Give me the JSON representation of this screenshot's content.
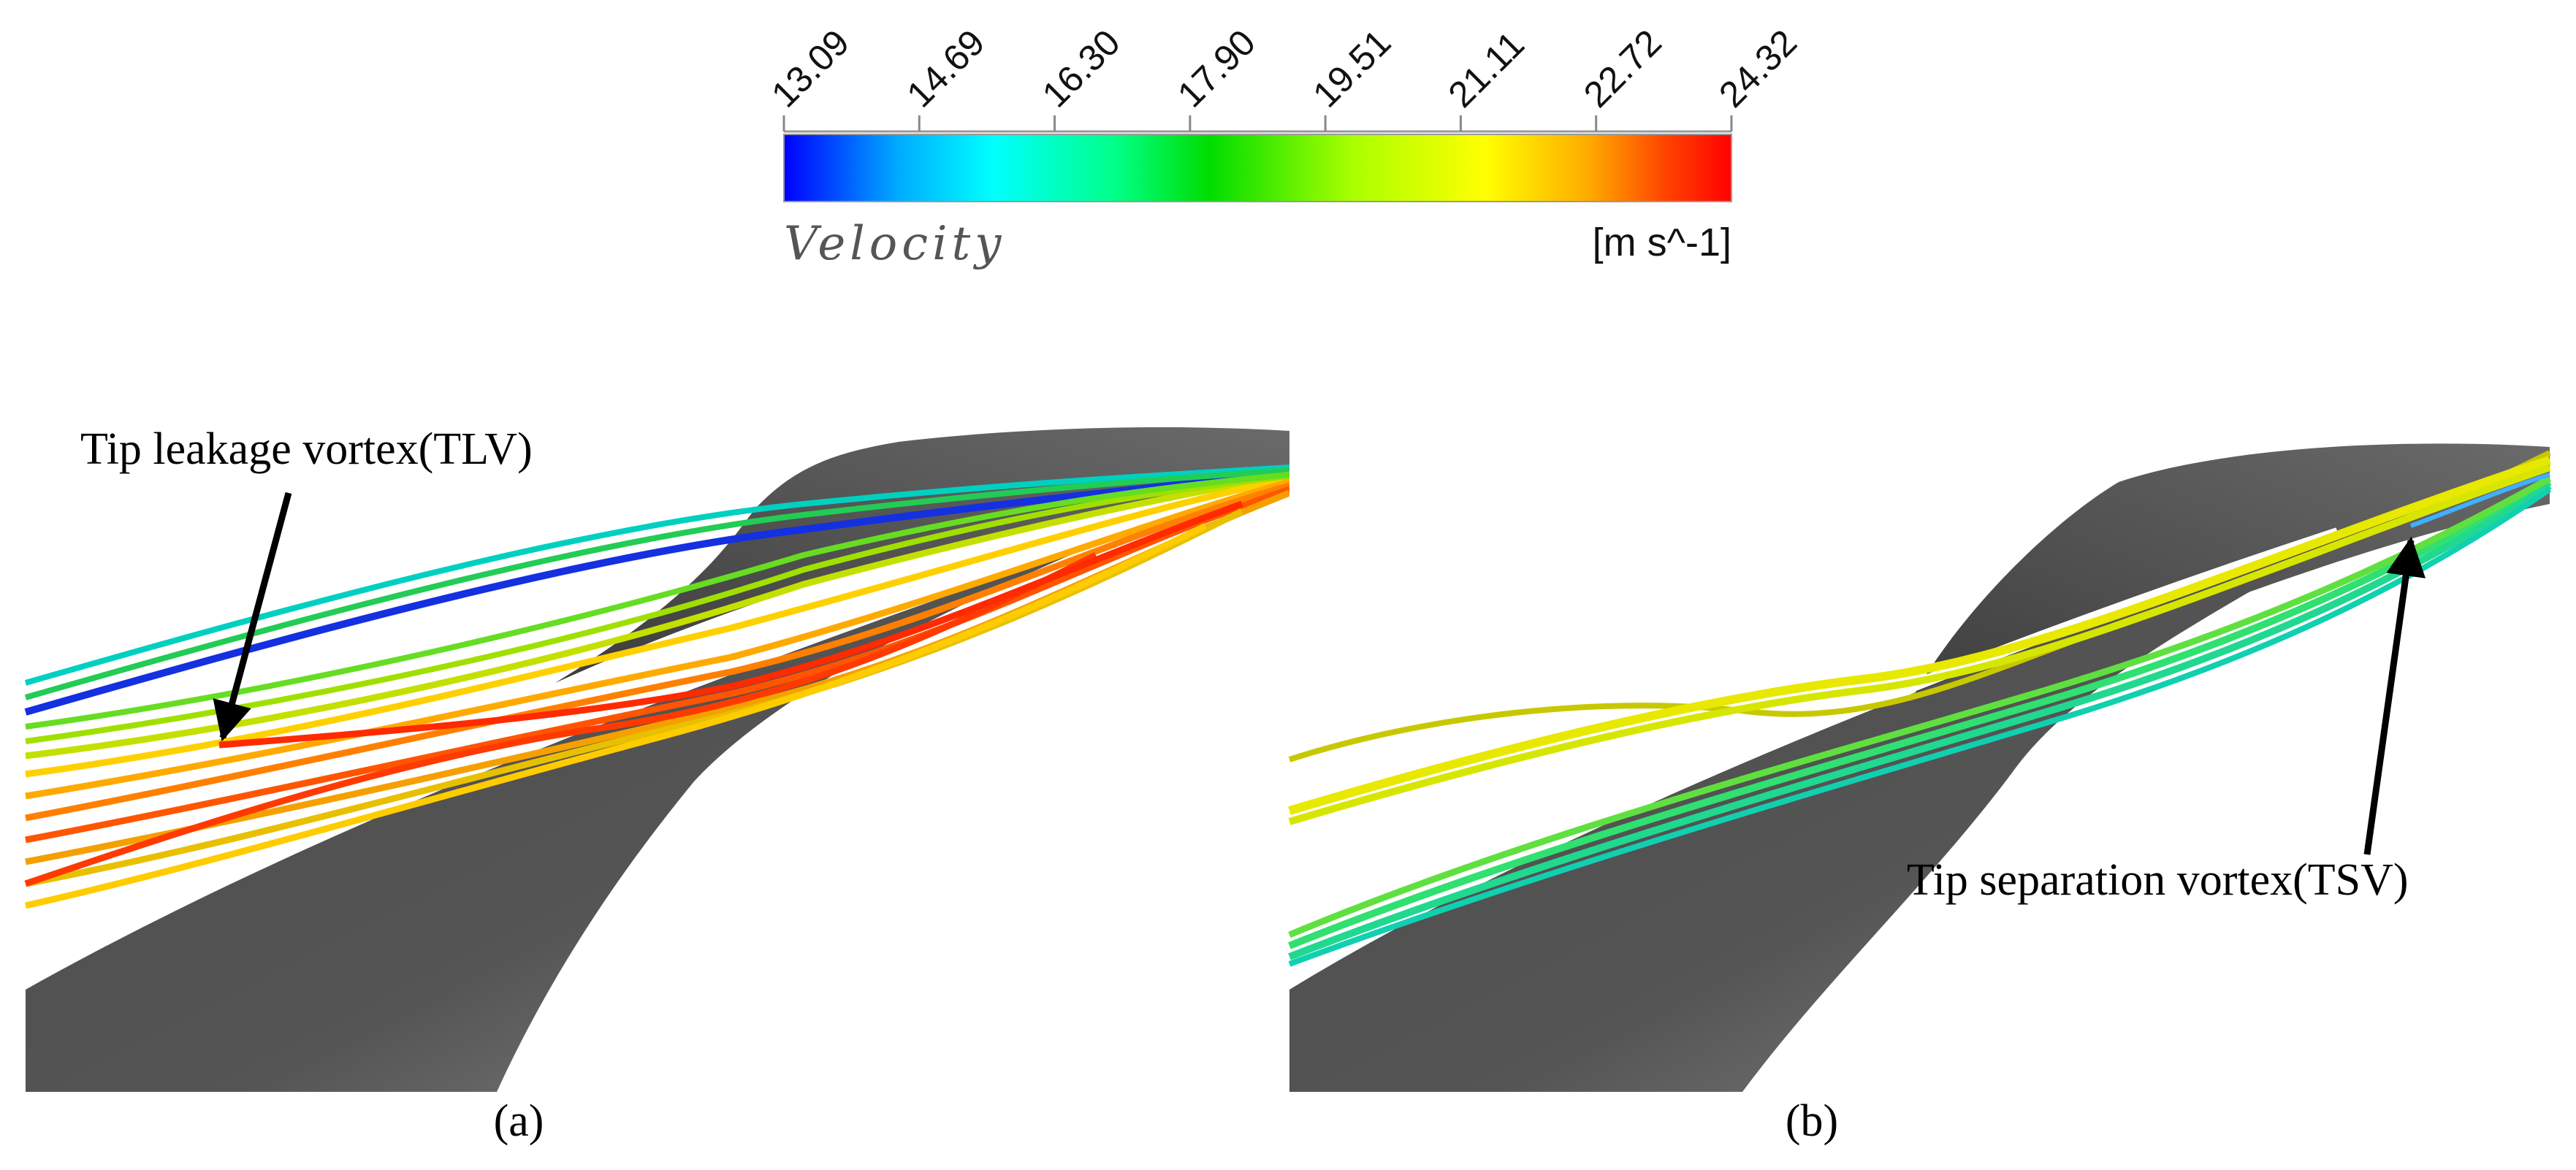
{
  "colorbar": {
    "title": "Velocity",
    "unit": "[m s^-1]",
    "ticks": [
      "13.09",
      "14.69",
      "16.30",
      "17.90",
      "19.51",
      "21.11",
      "22.72",
      "24.32"
    ],
    "min": 13.09,
    "max": 24.32,
    "colormap": [
      "#0000ff",
      "#00aaff",
      "#00ffff",
      "#00ff88",
      "#00dd00",
      "#aaff00",
      "#ffff00",
      "#ffaa00",
      "#ff4400",
      "#ff0000"
    ]
  },
  "panels": [
    {
      "label": "(a)",
      "annotation": "Tip leakage vortex(TLV)"
    },
    {
      "label": "(b)",
      "annotation": "Tip separation vortex(TSV)"
    }
  ]
}
